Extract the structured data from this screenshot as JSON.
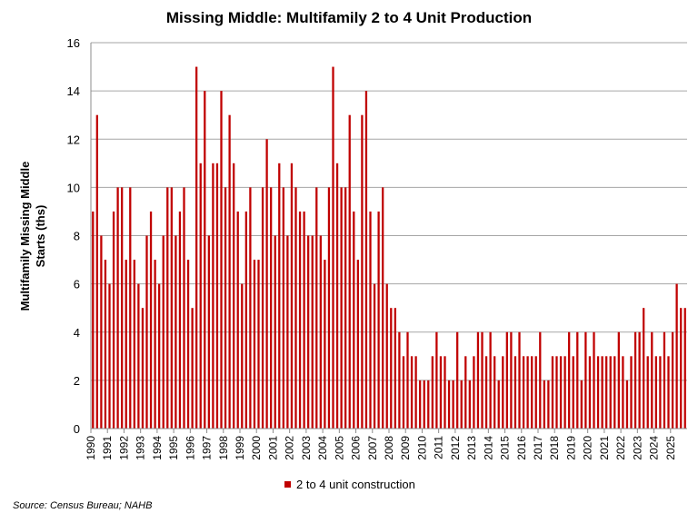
{
  "chart_data": {
    "type": "bar",
    "title": "Missing Middle: Multifamily 2 to 4 Unit Production",
    "ylabel_lines": [
      "Multifamily Missing Middle",
      "Starts (ths)"
    ],
    "xlabel": "",
    "ylim": [
      0,
      16
    ],
    "yticks": [
      0,
      2,
      4,
      6,
      8,
      10,
      12,
      14,
      16
    ],
    "grid": true,
    "legend_position": "bottom",
    "bar_color": "#C00000",
    "x_start_year": 1990,
    "quarters_per_year": 4,
    "xtick_labels": [
      "1990",
      "1991",
      "1992",
      "1993",
      "1994",
      "1995",
      "1996",
      "1997",
      "1998",
      "1999",
      "2000",
      "2001",
      "2002",
      "2003",
      "2004",
      "2005",
      "2006",
      "2007",
      "2008",
      "2009",
      "2010",
      "2011",
      "2012",
      "2013",
      "2014",
      "2015",
      "2016",
      "2017",
      "2018",
      "2019",
      "2020",
      "2021",
      "2022",
      "2023",
      "2024",
      "2025"
    ],
    "series": [
      {
        "name": "2 to 4 unit construction",
        "values": [
          9,
          13,
          8,
          7,
          6,
          9,
          10,
          10,
          7,
          10,
          7,
          6,
          5,
          8,
          9,
          7,
          6,
          8,
          10,
          10,
          8,
          9,
          10,
          7,
          5,
          15,
          11,
          14,
          8,
          11,
          11,
          14,
          10,
          13,
          11,
          9,
          6,
          9,
          10,
          7,
          7,
          10,
          12,
          10,
          8,
          11,
          10,
          8,
          11,
          10,
          9,
          9,
          8,
          8,
          10,
          8,
          7,
          10,
          15,
          11,
          10,
          10,
          13,
          9,
          7,
          13,
          14,
          9,
          6,
          9,
          10,
          6,
          5,
          5,
          4,
          3,
          4,
          3,
          3,
          2,
          2,
          2,
          3,
          4,
          3,
          3,
          2,
          2,
          4,
          2,
          3,
          2,
          3,
          4,
          4,
          3,
          4,
          3,
          2,
          3,
          4,
          4,
          3,
          4,
          3,
          3,
          3,
          3,
          4,
          2,
          2,
          3,
          3,
          3,
          3,
          4,
          3,
          4,
          2,
          4,
          3,
          4,
          3,
          3,
          3,
          3,
          3,
          4,
          3,
          2,
          3,
          4,
          4,
          5,
          3,
          4,
          3,
          3,
          4,
          3,
          4,
          6,
          5,
          5
        ]
      }
    ],
    "source": "Source: Census Bureau; NAHB"
  }
}
